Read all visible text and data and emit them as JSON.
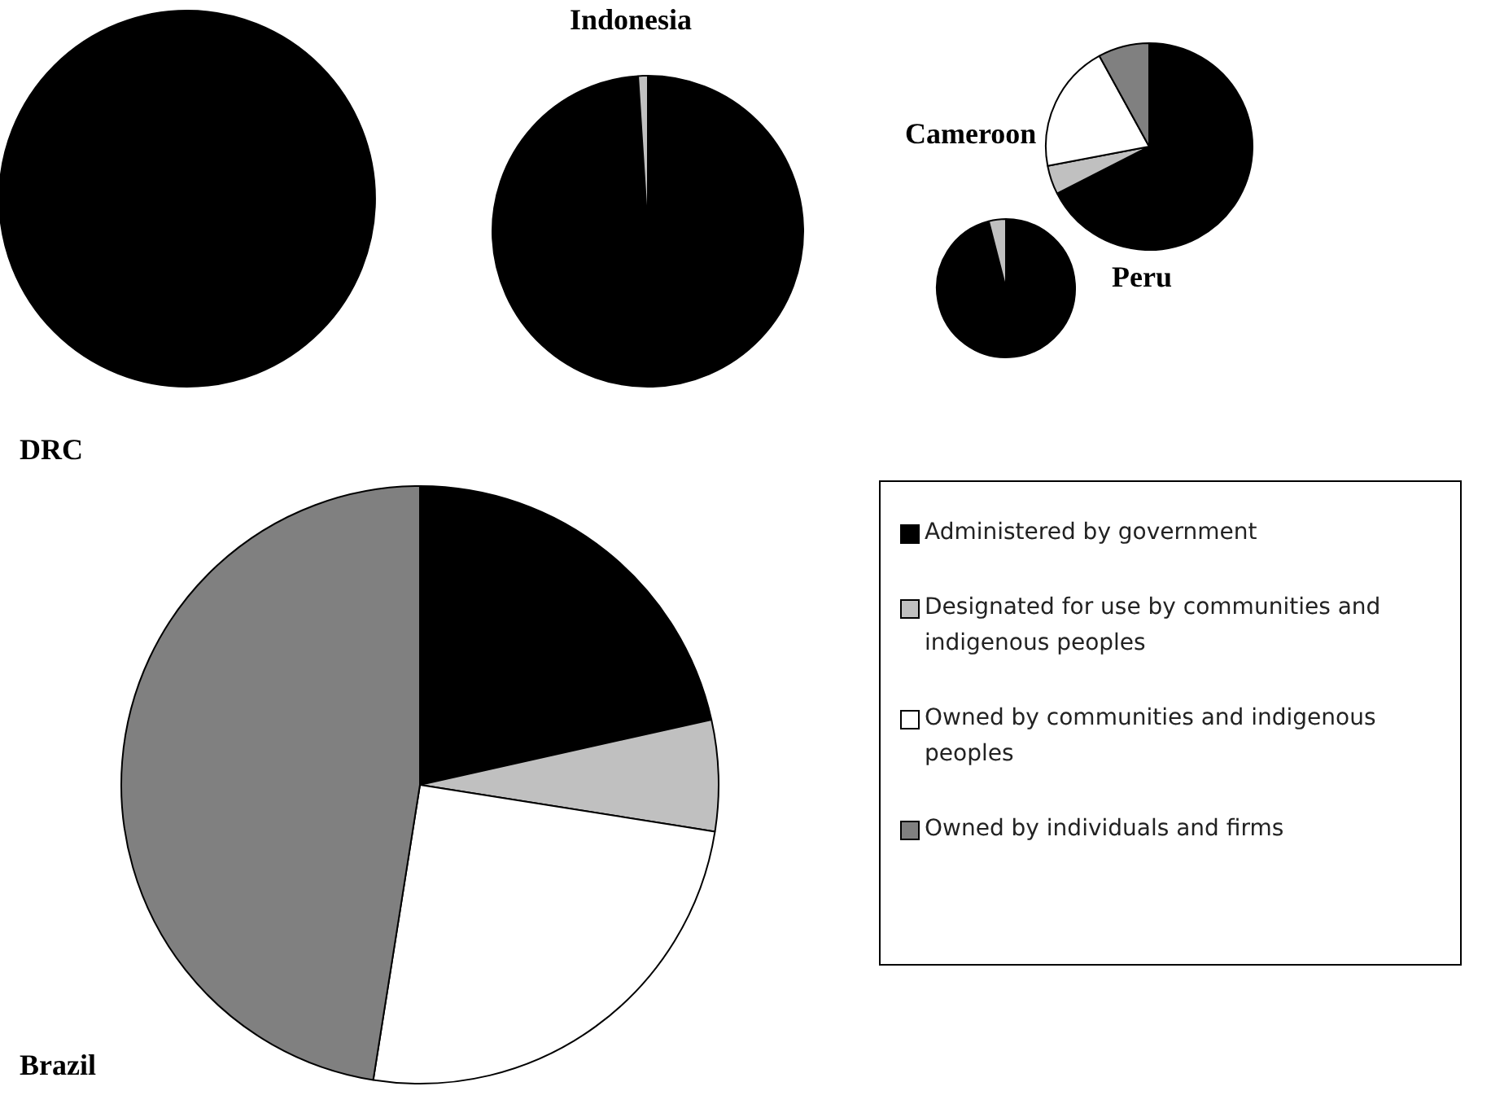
{
  "chart_data": [
    {
      "type": "pie",
      "title": "DRC",
      "categories": [
        null,
        null,
        null,
        null
      ],
      "values": [
        100,
        0,
        0,
        0
      ],
      "colors": [
        "#000000",
        "#c0c0c0",
        "#ffffff",
        "#808080"
      ]
    },
    {
      "type": "pie",
      "title": "Indonesia",
      "categories": [
        null,
        null,
        null,
        null
      ],
      "values": [
        99,
        1,
        0,
        0
      ],
      "colors": [
        "#000000",
        "#c0c0c0",
        "#ffffff",
        "#808080"
      ]
    },
    {
      "type": "pie",
      "title": "Cameroon",
      "categories": [
        null,
        null,
        null,
        null
      ],
      "values": [
        96,
        4,
        0,
        0
      ],
      "colors": [
        "#000000",
        "#c0c0c0",
        "#ffffff",
        "#808080"
      ]
    },
    {
      "type": "pie",
      "title": "Peru",
      "categories": [
        null,
        null,
        null,
        null
      ],
      "values": [
        67.5,
        4.5,
        20,
        8
      ],
      "colors": [
        "#000000",
        "#c0c0c0",
        "#ffffff",
        "#808080"
      ]
    },
    {
      "type": "pie",
      "title": "Brazil",
      "categories": [
        "Administered by government",
        "Designated for use by communities and indigenous peoples",
        "Owned by communities and indigenous peoples",
        "Owned by individuals and firms"
      ],
      "values": [
        21.5,
        6,
        25,
        47.5
      ],
      "colors": [
        "#000000",
        "#c0c0c0",
        "#ffffff",
        "#808080"
      ],
      "legend": "right"
    }
  ]
}
